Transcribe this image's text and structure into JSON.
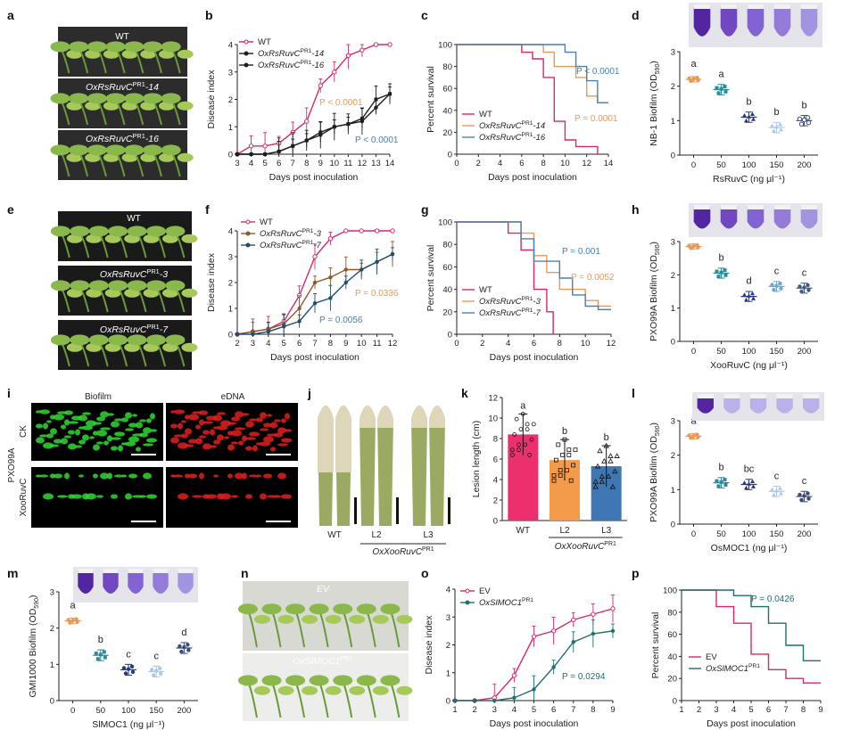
{
  "colors": {
    "wt_magenta": "#d6286e",
    "orange": "#e89a55",
    "blue": "#4a7fb0",
    "dark": "#1e1e1e",
    "teal": "#1e6f6f",
    "biofilm_green": "#33d633",
    "edna_red": "#e02020",
    "bar_pink": "#ee2f6d",
    "bar_orange": "#f39a4b",
    "bar_blue": "#3f77b4",
    "purple": "#6a3fb0"
  },
  "panels": {
    "a": {
      "letter": "a",
      "labels": [
        "WT",
        "OxRsRuvC",
        "-14",
        "OxRsRuvC",
        "-16"
      ],
      "sup": "PR1"
    },
    "e": {
      "letter": "e",
      "labels": [
        "WT",
        "OxRsRuvC",
        "-3",
        "OxRsRuvC",
        "-7"
      ],
      "sup": "PR1"
    },
    "i": {
      "letter": "i",
      "col1": "Biofilm",
      "col2": "eDNA",
      "strain": "PXO99A",
      "row1": "CK",
      "row2": "XooRuvC"
    },
    "j": {
      "letter": "j",
      "labels": [
        "WT",
        "L2",
        "L3"
      ],
      "group": "OxXooRuvC",
      "sup": "PR1"
    },
    "n": {
      "letter": "n",
      "labels": [
        "EV",
        "OxSlMOC1"
      ],
      "sup": "PR1"
    }
  },
  "chart_data": [
    {
      "id": "b",
      "type": "line",
      "xlabel": "Days post inoculation",
      "ylabel": "Disease index",
      "xlim": [
        3,
        14
      ],
      "ylim": [
        0,
        4
      ],
      "x": [
        3,
        4,
        5,
        6,
        7,
        8,
        9,
        10,
        11,
        12,
        13,
        14
      ],
      "series": [
        {
          "name": "WT",
          "color": "#d6286e",
          "values": [
            0,
            0.3,
            0.3,
            0.4,
            0.8,
            1.2,
            2.5,
            3.0,
            3.6,
            3.8,
            4,
            4
          ]
        },
        {
          "name": "OxRsRuvC",
          "sup": "PR1",
          "suffix": "-14",
          "color": "#1e1e1e",
          "values": [
            0,
            0,
            0,
            0.1,
            0.3,
            0.5,
            0.8,
            1.0,
            1.1,
            1.3,
            2.0,
            2.2
          ]
        },
        {
          "name": "OxRsRuvC",
          "sup": "PR1",
          "suffix": "-16",
          "color": "#1e1e1e",
          "values": [
            0,
            0,
            0,
            0.1,
            0.3,
            0.5,
            0.7,
            1.0,
            1.1,
            1.2,
            1.7,
            2.2
          ]
        }
      ],
      "annotations": [
        "P < 0.0001",
        "P < 0.0001"
      ]
    },
    {
      "id": "c",
      "type": "line",
      "xlabel": "Days post inoculation",
      "ylabel": "Percent survival",
      "xlim": [
        0,
        14
      ],
      "ylim": [
        0,
        100
      ],
      "series": [
        {
          "name": "WT",
          "color": "#d6286e",
          "steps": [
            [
              0,
              100
            ],
            [
              6,
              100
            ],
            [
              6,
              93
            ],
            [
              7,
              93
            ],
            [
              7,
              87
            ],
            [
              8,
              87
            ],
            [
              8,
              70
            ],
            [
              9,
              70
            ],
            [
              9,
              30
            ],
            [
              10,
              30
            ],
            [
              10,
              13
            ],
            [
              11,
              13
            ],
            [
              11,
              7
            ],
            [
              13,
              7
            ],
            [
              13,
              0
            ]
          ]
        },
        {
          "name": "OxRsRuvC",
          "sup": "PR1",
          "suffix": "-14",
          "color": "#e89a55",
          "steps": [
            [
              0,
              100
            ],
            [
              8,
              100
            ],
            [
              8,
              93
            ],
            [
              9,
              93
            ],
            [
              9,
              80
            ],
            [
              11,
              80
            ],
            [
              11,
              70
            ],
            [
              12,
              70
            ],
            [
              12,
              53
            ],
            [
              13,
              53
            ],
            [
              13,
              47
            ],
            [
              14,
              47
            ]
          ]
        },
        {
          "name": "OxRsRuvC",
          "sup": "PR1",
          "suffix": "-16",
          "color": "#4a7fb0",
          "steps": [
            [
              0,
              100
            ],
            [
              10,
              100
            ],
            [
              10,
              93
            ],
            [
              11,
              93
            ],
            [
              11,
              80
            ],
            [
              12,
              80
            ],
            [
              12,
              67
            ],
            [
              13,
              67
            ],
            [
              13,
              47
            ],
            [
              14,
              47
            ]
          ]
        }
      ],
      "annotations": [
        "P < 0.0001",
        "P = 0.0001"
      ]
    },
    {
      "id": "d",
      "type": "scatter",
      "xlabel": "RsRuvC (ng μl⁻¹)",
      "ylabel": "NB-1 Biofilm (OD",
      "ylabel_sub": "590",
      "ylim": [
        0,
        3
      ],
      "categories": [
        "0",
        "50",
        "100",
        "150",
        "200"
      ],
      "means": [
        2.2,
        1.9,
        1.1,
        0.8,
        1.0
      ],
      "letters": [
        "a",
        "a",
        "b",
        "b",
        "b"
      ],
      "point_colors": [
        "#e89a55",
        "#2a8a9a",
        "#233a8a",
        "#a9c8ea",
        "#3a4a7a"
      ]
    },
    {
      "id": "f",
      "type": "line",
      "xlabel": "Days post inoculation",
      "ylabel": "Disease index",
      "xlim": [
        2,
        12
      ],
      "ylim": [
        0,
        4
      ],
      "x": [
        2,
        3,
        4,
        5,
        6,
        7,
        8,
        9,
        10,
        11,
        12
      ],
      "series": [
        {
          "name": "WT",
          "color": "#d6286e",
          "values": [
            0,
            0.1,
            0.2,
            0.5,
            1.5,
            3.0,
            3.7,
            4,
            4,
            4,
            4
          ]
        },
        {
          "name": "OxRsRuvC",
          "sup": "PR1",
          "suffix": "-3",
          "color": "#8a5a2a",
          "values": [
            0,
            0.1,
            0.2,
            0.4,
            1.0,
            2.0,
            2.2,
            2.5,
            2.5,
            2.8,
            3.1
          ]
        },
        {
          "name": "OxRsRuvC",
          "sup": "PR1",
          "suffix": "-7",
          "color": "#1e4f6f",
          "values": [
            0,
            0,
            0.1,
            0.3,
            0.5,
            1.2,
            1.4,
            2.0,
            2.5,
            2.8,
            3.1
          ]
        }
      ],
      "annotations": [
        "P = 0.0336",
        "P = 0.0056"
      ]
    },
    {
      "id": "g",
      "type": "line",
      "xlabel": "Days post inoculation",
      "ylabel": "Percent survival",
      "xlim": [
        0,
        12
      ],
      "ylim": [
        0,
        100
      ],
      "series": [
        {
          "name": "WT",
          "color": "#d6286e",
          "steps": [
            [
              0,
              100
            ],
            [
              4,
              100
            ],
            [
              4,
              90
            ],
            [
              5,
              90
            ],
            [
              5,
              75
            ],
            [
              6,
              75
            ],
            [
              6,
              40
            ],
            [
              7,
              40
            ],
            [
              7,
              20
            ],
            [
              7.5,
              20
            ],
            [
              7.5,
              0
            ]
          ]
        },
        {
          "name": "OxRsRuvC",
          "sup": "PR1",
          "suffix": "-3",
          "color": "#e89a55",
          "steps": [
            [
              0,
              100
            ],
            [
              5,
              100
            ],
            [
              5,
              90
            ],
            [
              6,
              90
            ],
            [
              6,
              70
            ],
            [
              7,
              70
            ],
            [
              7,
              55
            ],
            [
              8,
              55
            ],
            [
              8,
              40
            ],
            [
              10,
              40
            ],
            [
              10,
              30
            ],
            [
              11,
              30
            ],
            [
              11,
              25
            ],
            [
              12,
              25
            ]
          ]
        },
        {
          "name": "OxRsRuvC",
          "sup": "PR1",
          "suffix": "-7",
          "color": "#4a7fb0",
          "steps": [
            [
              0,
              100
            ],
            [
              5,
              100
            ],
            [
              5,
              85
            ],
            [
              6,
              85
            ],
            [
              6,
              65
            ],
            [
              8,
              65
            ],
            [
              8,
              50
            ],
            [
              9,
              50
            ],
            [
              9,
              35
            ],
            [
              10,
              35
            ],
            [
              10,
              25
            ],
            [
              11,
              25
            ],
            [
              11,
              22
            ],
            [
              12,
              22
            ]
          ]
        }
      ],
      "annotations": [
        "P = 0.001",
        "P = 0.0052"
      ]
    },
    {
      "id": "h",
      "type": "scatter",
      "xlabel": "XooRuvC (ng μl⁻¹)",
      "ylabel": "PXO99A Biofilm (OD",
      "ylabel_sub": "590",
      "ylim": [
        0,
        3
      ],
      "categories": [
        "0",
        "50",
        "100",
        "150",
        "200"
      ],
      "means": [
        2.85,
        2.05,
        1.35,
        1.65,
        1.6
      ],
      "letters": [
        "a",
        "b",
        "d",
        "c",
        "c"
      ],
      "point_colors": [
        "#e89a55",
        "#2a8a9a",
        "#233a8a",
        "#6fa8d8",
        "#3a5a8a"
      ]
    },
    {
      "id": "k",
      "type": "bar",
      "xlabel": "",
      "ylabel": "Lesion length (cm)",
      "ylim": [
        0,
        12
      ],
      "categories": [
        "WT",
        "L2",
        "L3"
      ],
      "values": [
        8.4,
        5.9,
        5.3
      ],
      "letters": [
        "a",
        "b",
        "b"
      ],
      "group": "OxXooRuvC",
      "sup": "PR1",
      "bar_colors": [
        "#ee2f6d",
        "#f39a4b",
        "#3f77b4"
      ]
    },
    {
      "id": "l",
      "type": "scatter",
      "xlabel": "OsMOC1 (ng μl⁻¹)",
      "ylabel": "PXO99A Biofilm (OD",
      "ylabel_sub": "590",
      "ylim": [
        0,
        3
      ],
      "categories": [
        "0",
        "50",
        "100",
        "150",
        "200"
      ],
      "means": [
        2.55,
        1.2,
        1.15,
        0.95,
        0.8
      ],
      "letters": [
        "a",
        "b",
        "bc",
        "c",
        "c"
      ],
      "point_colors": [
        "#e89a55",
        "#2a8a9a",
        "#233a8a",
        "#a9c8ea",
        "#3a4a7a"
      ]
    },
    {
      "id": "m",
      "type": "scatter",
      "xlabel": "SlMOC1 (ng μl⁻¹)",
      "ylabel": "GMI1000 Biofilm (OD",
      "ylabel_sub": "590",
      "ylim": [
        0,
        3
      ],
      "categories": [
        "0",
        "50",
        "100",
        "150",
        "200"
      ],
      "means": [
        2.2,
        1.25,
        0.85,
        0.8,
        1.45
      ],
      "letters": [
        "a",
        "b",
        "c",
        "c",
        "d"
      ],
      "point_colors": [
        "#e89a55",
        "#2a8a9a",
        "#233a8a",
        "#a9c8ea",
        "#3a4a7a"
      ]
    },
    {
      "id": "o",
      "type": "line",
      "xlabel": "Days post inoculation",
      "ylabel": "Disease index",
      "xlim": [
        1,
        9
      ],
      "ylim": [
        0,
        4
      ],
      "x": [
        1,
        2,
        3,
        4,
        5,
        6,
        7,
        8,
        9
      ],
      "series": [
        {
          "name": "EV",
          "color": "#d6286e",
          "values": [
            0,
            0,
            0.1,
            0.9,
            2.3,
            2.5,
            2.9,
            3.1,
            3.3
          ]
        },
        {
          "name": "OxSlMOC1",
          "sup": "PR1",
          "color": "#1e6f6f",
          "values": [
            0,
            0,
            0,
            0.1,
            0.4,
            1.2,
            2.1,
            2.4,
            2.5
          ]
        }
      ],
      "annotations": [
        "P = 0.0294"
      ]
    },
    {
      "id": "p",
      "type": "line",
      "xlabel": "Days post inoculation",
      "ylabel": "Percent survival",
      "xlim": [
        1,
        9
      ],
      "ylim": [
        0,
        100
      ],
      "series": [
        {
          "name": "EV",
          "color": "#d6286e",
          "steps": [
            [
              1,
              100
            ],
            [
              3,
              100
            ],
            [
              3,
              85
            ],
            [
              4,
              85
            ],
            [
              4,
              70
            ],
            [
              5,
              70
            ],
            [
              5,
              42
            ],
            [
              6,
              42
            ],
            [
              6,
              28
            ],
            [
              7,
              28
            ],
            [
              7,
              20
            ],
            [
              8,
              20
            ],
            [
              8,
              16
            ],
            [
              9,
              16
            ]
          ]
        },
        {
          "name": "OxSlMOC1",
          "sup": "PR1",
          "color": "#1e6f6f",
          "steps": [
            [
              1,
              100
            ],
            [
              4,
              100
            ],
            [
              4,
              95
            ],
            [
              5,
              95
            ],
            [
              5,
              85
            ],
            [
              6,
              85
            ],
            [
              6,
              70
            ],
            [
              7,
              70
            ],
            [
              7,
              50
            ],
            [
              8,
              50
            ],
            [
              8,
              36
            ],
            [
              9,
              36
            ]
          ]
        }
      ],
      "annotations": [
        "P = 0.0426"
      ]
    }
  ]
}
